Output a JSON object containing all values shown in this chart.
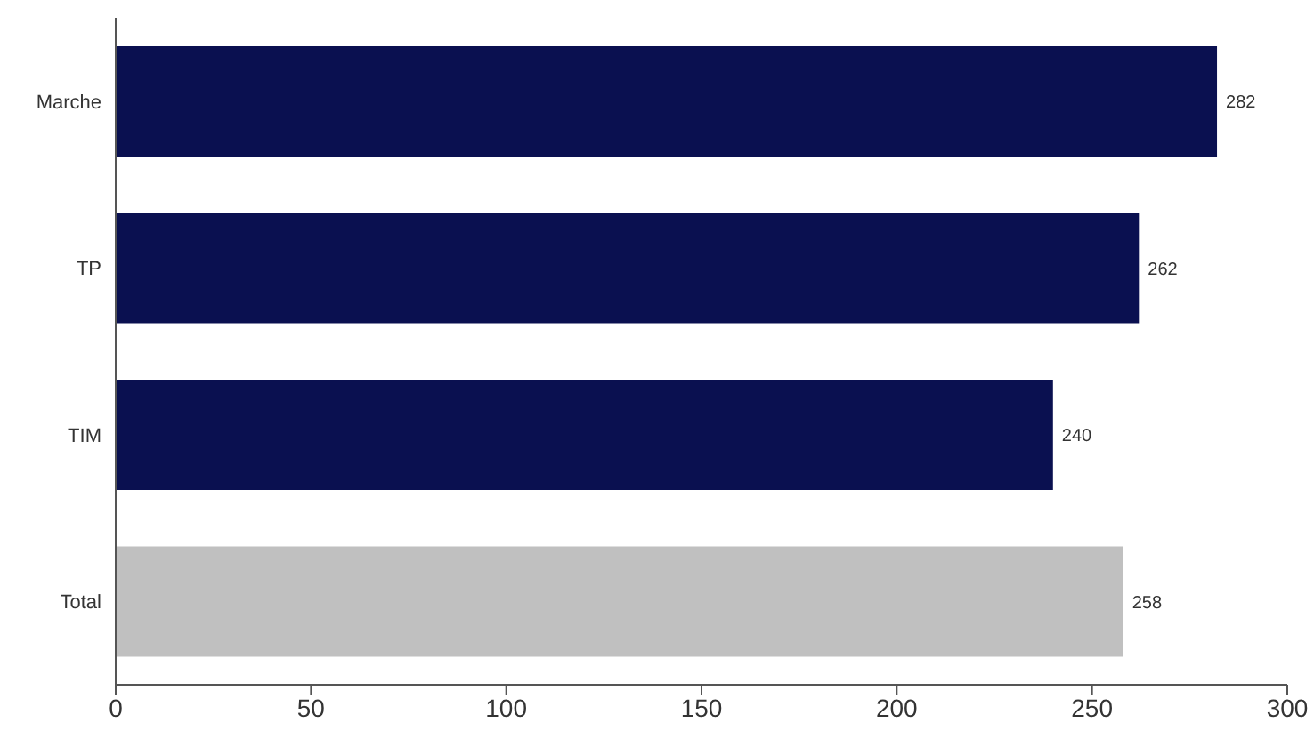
{
  "chart_data": {
    "type": "bar",
    "orientation": "horizontal",
    "categories": [
      "Marche",
      "TP",
      "TIM",
      "Total"
    ],
    "values": [
      282,
      262,
      240,
      258
    ],
    "colors": [
      "#0a1050",
      "#0a1050",
      "#0a1050",
      "#c0c0c0"
    ],
    "xlim": [
      0,
      300
    ],
    "xticks": [
      0,
      50,
      100,
      150,
      200,
      250,
      300
    ],
    "data_labels": true
  }
}
